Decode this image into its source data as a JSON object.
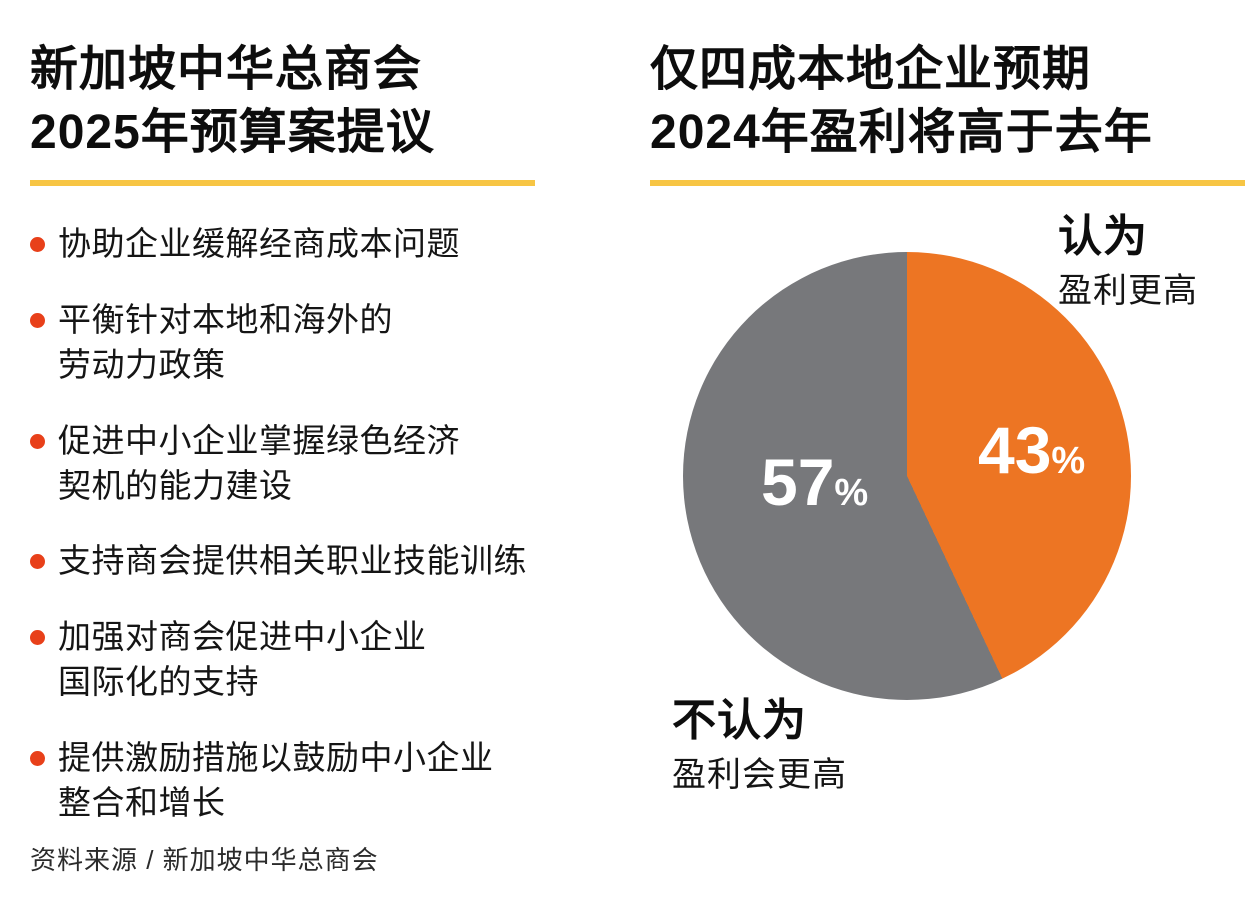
{
  "colors": {
    "orange": "#ed7523",
    "gray": "#77787b",
    "yellow_underline": "#f7c544",
    "bullet_red": "#e8401a",
    "text": "#0d0d0d"
  },
  "left_panel": {
    "title": "新加坡中华总商会\n2025年预算案提议",
    "bullets": [
      "协助企业缓解经商成本问题",
      "平衡针对本地和海外的\n劳动力政策",
      "促进中小企业掌握绿色经济\n契机的能力建设",
      "支持商会提供相关职业技能训练",
      "加强对商会促进中小企业\n国际化的支持",
      "提供激励措施以鼓励中小企业\n整合和增长"
    ],
    "source": "资料来源 / 新加坡中华总商会"
  },
  "right_panel": {
    "title": "仅四成本地企业预期\n2024年盈利将高于去年",
    "yes_label": "认为",
    "yes_sublabel": "盈利更高",
    "no_label": "不认为",
    "no_sublabel": "盈利会更高",
    "percent_sign": "%"
  },
  "chart_data": {
    "type": "pie",
    "title": "仅四成本地企业预期2024年盈利将高于去年",
    "slices": [
      {
        "label": "认为盈利更高",
        "value": 43,
        "color": "#ed7523"
      },
      {
        "label": "不认为盈利会更高",
        "value": 57,
        "color": "#77787b"
      }
    ],
    "start_angle_deg": 0,
    "direction": "clockwise",
    "value_labels": [
      "43%",
      "57%"
    ],
    "legend_position": "callouts"
  }
}
